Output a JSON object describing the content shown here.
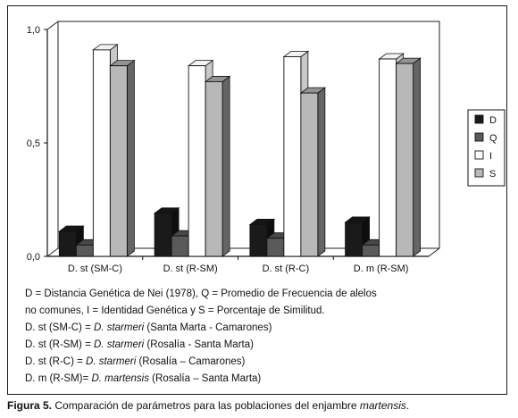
{
  "chart_data": {
    "type": "bar",
    "categories": [
      "D. st (SM-C)",
      "D. st (R-SM)",
      "D. st (R-C)",
      "D. m (R-SM)"
    ],
    "series": [
      {
        "name": "D",
        "values": [
          0.11,
          0.19,
          0.14,
          0.15
        ],
        "color": "#1a1a1a"
      },
      {
        "name": "Q",
        "values": [
          0.05,
          0.09,
          0.08,
          0.05
        ],
        "color": "#5a5a5a"
      },
      {
        "name": "I",
        "values": [
          0.91,
          0.84,
          0.88,
          0.87
        ],
        "color": "#ffffff"
      },
      {
        "name": "S",
        "values": [
          0.84,
          0.77,
          0.72,
          0.85
        ],
        "color": "#b8b8b8"
      }
    ],
    "ylim": [
      0,
      1
    ],
    "yticks": [
      "0,0",
      "0,5",
      "1,0"
    ],
    "legend_position": "right",
    "grid": false
  },
  "notes": {
    "line1": "D = Distancia Genética de Nei (1978), Q = Promedio de Frecuencia de alelos",
    "line2": "no comunes,   I = Identidad Genética y S = Porcentaje de Similitud.",
    "abbr": [
      {
        "prefix": "D. st (SM-C) = ",
        "species": "D. starmeri",
        "rest": " (Santa Marta - Camarones)"
      },
      {
        "prefix": "D. st (R-SM) = ",
        "species": "D. starmeri",
        "rest": " (Rosalía - Santa Marta)"
      },
      {
        "prefix": "D. st (R-C) = ",
        "species": "D. starmeri",
        "rest": " (Rosalía – Camarones)"
      },
      {
        "prefix": "D. m (R-SM)= ",
        "species": "D. martensis",
        "rest": " (Rosalía – Santa Marta)"
      }
    ]
  },
  "caption": {
    "label": "Figura 5.",
    "text": " Comparación de parámetros para las poblaciones del enjambre ",
    "species": "martensis",
    "end": "."
  }
}
